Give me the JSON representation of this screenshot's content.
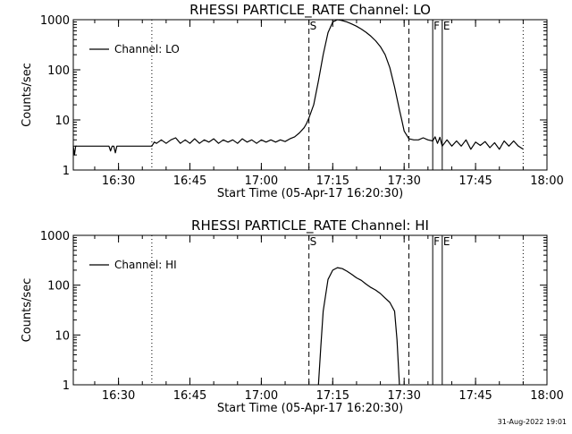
{
  "timestamp": "31-Aug-2022 19:01",
  "chart_data": [
    {
      "type": "line",
      "title": "RHESSI PARTICLE_RATE Channel: LO",
      "xlabel": "Start Time (05-Apr-17 16:20:30)",
      "ylabel": "Counts/sec",
      "y_scale": "log",
      "ylim": [
        1,
        1000
      ],
      "yticks": [
        "1",
        "10",
        "100",
        "1000"
      ],
      "xlim": [
        "16:20:30",
        "18:00"
      ],
      "xticks": [
        "16:30",
        "16:45",
        "17:00",
        "17:15",
        "17:30",
        "17:45",
        "18:00"
      ],
      "legend": {
        "placement": "top-left",
        "entries": [
          "Channel: LO"
        ]
      },
      "markers": [
        {
          "label": "",
          "time": "16:37",
          "style": "dotted"
        },
        {
          "label": "S",
          "time": "17:10",
          "style": "dashed"
        },
        {
          "label": "",
          "time": "17:31",
          "style": "dashed"
        },
        {
          "label": "F",
          "time": "17:36",
          "style": "solid"
        },
        {
          "label": "E",
          "time": "17:38",
          "style": "solid"
        },
        {
          "label": "",
          "time": "17:55",
          "style": "dotted"
        }
      ],
      "series": [
        {
          "name": "Channel: LO",
          "x": [
            "16:20:30",
            "16:20:45",
            "16:21",
            "16:25",
            "16:28",
            "16:28:20",
            "16:28:40",
            "16:29",
            "16:29:20",
            "16:29:40",
            "16:30",
            "16:37",
            "16:37:30",
            "16:38",
            "16:39",
            "16:40",
            "16:41",
            "16:42",
            "16:43",
            "16:44",
            "16:45",
            "16:46",
            "16:47",
            "16:48",
            "16:49",
            "16:50",
            "16:51",
            "16:52",
            "16:53",
            "16:54",
            "16:55",
            "16:56",
            "16:57",
            "16:58",
            "16:59",
            "17:00",
            "17:01",
            "17:02",
            "17:03",
            "17:04",
            "17:05",
            "17:06",
            "17:07",
            "17:08",
            "17:09",
            "17:09:30",
            "17:10",
            "17:11",
            "17:12",
            "17:13",
            "17:14",
            "17:15",
            "17:16",
            "17:17",
            "17:18",
            "17:19",
            "17:20",
            "17:21",
            "17:22",
            "17:23",
            "17:24",
            "17:25",
            "17:26",
            "17:27",
            "17:28",
            "17:29",
            "17:29:30",
            "17:30",
            "17:31",
            "17:32",
            "17:33",
            "17:34",
            "17:35",
            "17:36",
            "17:36:30",
            "17:37",
            "17:37:30",
            "17:38",
            "17:39",
            "17:40",
            "17:41",
            "17:42",
            "17:43",
            "17:44",
            "17:45",
            "17:46",
            "17:47",
            "17:48",
            "17:49",
            "17:50",
            "17:51",
            "17:52",
            "17:53",
            "17:54",
            "17:55"
          ],
          "values": [
            3,
            2,
            3,
            3,
            3,
            2.4,
            3,
            3,
            2.2,
            3,
            3,
            3,
            3.6,
            3.4,
            4,
            3.4,
            4,
            4.4,
            3.4,
            4,
            3.4,
            4.2,
            3.4,
            4,
            3.6,
            4.2,
            3.4,
            4,
            3.6,
            4,
            3.4,
            4.2,
            3.6,
            4,
            3.4,
            4,
            3.6,
            4,
            3.6,
            4,
            3.7,
            4.2,
            4.6,
            5.5,
            7,
            8.5,
            11,
            20,
            60,
            200,
            550,
            900,
            1000,
            960,
            900,
            820,
            740,
            650,
            560,
            470,
            380,
            290,
            200,
            110,
            45,
            16,
            10,
            6,
            4.2,
            4,
            4,
            4.4,
            4,
            3.8,
            4.6,
            3.4,
            4.5,
            3,
            4,
            3,
            3.8,
            3,
            4,
            2.6,
            3.6,
            3.1,
            3.7,
            2.8,
            3.5,
            2.6,
            3.8,
            3,
            3.8,
            3,
            2.6
          ]
        }
      ]
    },
    {
      "type": "line",
      "title": "RHESSI PARTICLE_RATE Channel: HI",
      "xlabel": "Start Time (05-Apr-17 16:20:30)",
      "ylabel": "Counts/sec",
      "y_scale": "log",
      "ylim": [
        1,
        1000
      ],
      "yticks": [
        "1",
        "10",
        "100",
        "1000"
      ],
      "xlim": [
        "16:20:30",
        "18:00"
      ],
      "xticks": [
        "16:30",
        "16:45",
        "17:00",
        "17:15",
        "17:30",
        "17:45",
        "18:00"
      ],
      "legend": {
        "placement": "top-left",
        "entries": [
          "Channel: HI"
        ]
      },
      "markers": [
        {
          "label": "",
          "time": "16:37",
          "style": "dotted"
        },
        {
          "label": "S",
          "time": "17:10",
          "style": "dashed"
        },
        {
          "label": "",
          "time": "17:31",
          "style": "dashed"
        },
        {
          "label": "F",
          "time": "17:36",
          "style": "solid"
        },
        {
          "label": "E",
          "time": "17:38",
          "style": "solid"
        },
        {
          "label": "",
          "time": "17:55",
          "style": "dotted"
        }
      ],
      "series": [
        {
          "name": "Channel: HI",
          "x": [
            "17:12",
            "17:12:30",
            "17:13",
            "17:14",
            "17:15",
            "17:16",
            "17:17",
            "17:18",
            "17:19",
            "17:20",
            "17:21",
            "17:22",
            "17:23",
            "17:24",
            "17:25",
            "17:26",
            "17:27",
            "17:28",
            "17:28:30",
            "17:29"
          ],
          "values": [
            1,
            6,
            30,
            130,
            200,
            225,
            215,
            190,
            165,
            140,
            125,
            105,
            90,
            80,
            68,
            55,
            45,
            30,
            8,
            1
          ]
        }
      ]
    }
  ]
}
